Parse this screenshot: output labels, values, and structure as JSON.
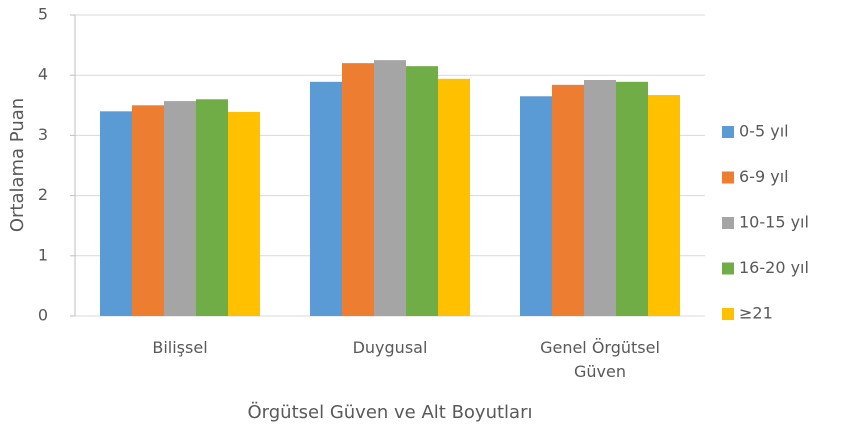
{
  "chart_data": {
    "type": "bar",
    "x_label": "Örgütsel Güven ve Alt Boyutları",
    "y_label": "Ortalama Puan",
    "categories": [
      "Bilişsel",
      "Duygusal",
      "Genel Örgütsel Güven"
    ],
    "series": [
      {
        "name": "0-5 yıl",
        "color": "#5b9bd5",
        "values": [
          3.4,
          3.89,
          3.65
        ]
      },
      {
        "name": "6-9 yıl",
        "color": "#ed7d31",
        "values": [
          3.5,
          4.2,
          3.84
        ]
      },
      {
        "name": "10-15 yıl",
        "color": "#a5a5a5",
        "values": [
          3.57,
          4.25,
          3.92
        ]
      },
      {
        "name": "16-20 yıl",
        "color": "#70ad47",
        "values": [
          3.6,
          4.15,
          3.89
        ]
      },
      {
        "name": "≥21",
        "color": "#ffc000",
        "values": [
          3.39,
          3.94,
          3.67
        ]
      }
    ],
    "ylim": [
      0,
      5
    ],
    "yticks": [
      0,
      1,
      2,
      3,
      4,
      5
    ],
    "grid": true,
    "legend": "right"
  }
}
